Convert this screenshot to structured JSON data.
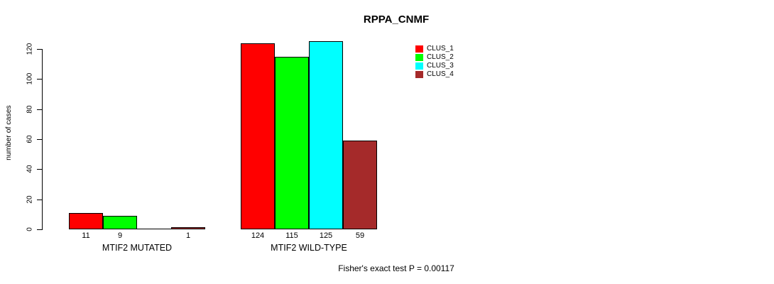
{
  "chart_data": {
    "type": "bar",
    "title": "RPPA_CNMF",
    "ylabel": "number of cases",
    "xlabel": "",
    "ylim": [
      0,
      120
    ],
    "yticks": [
      0,
      20,
      40,
      60,
      80,
      100,
      120
    ],
    "grid": false,
    "legend_position": "top-right",
    "categories": [
      "MTIF2 MUTATED",
      "MTIF2 WILD-TYPE"
    ],
    "series": [
      {
        "name": "CLUS_1",
        "color": "#ff0000",
        "values": [
          11,
          124
        ]
      },
      {
        "name": "CLUS_2",
        "color": "#00ff00",
        "values": [
          9,
          115
        ]
      },
      {
        "name": "CLUS_3",
        "color": "#00ffff",
        "values": [
          0,
          125
        ]
      },
      {
        "name": "CLUS_4",
        "color": "#a52a2a",
        "values": [
          1,
          59
        ]
      }
    ],
    "bar_value_labels": [
      "11",
      "9",
      "",
      "1",
      "124",
      "115",
      "125",
      "59"
    ],
    "footer": "Fisher's exact test P = 0.00117",
    "colors": {
      "bar_border": "#000000",
      "axis": "#000000",
      "text": "#000000",
      "background": "#ffffff"
    }
  }
}
